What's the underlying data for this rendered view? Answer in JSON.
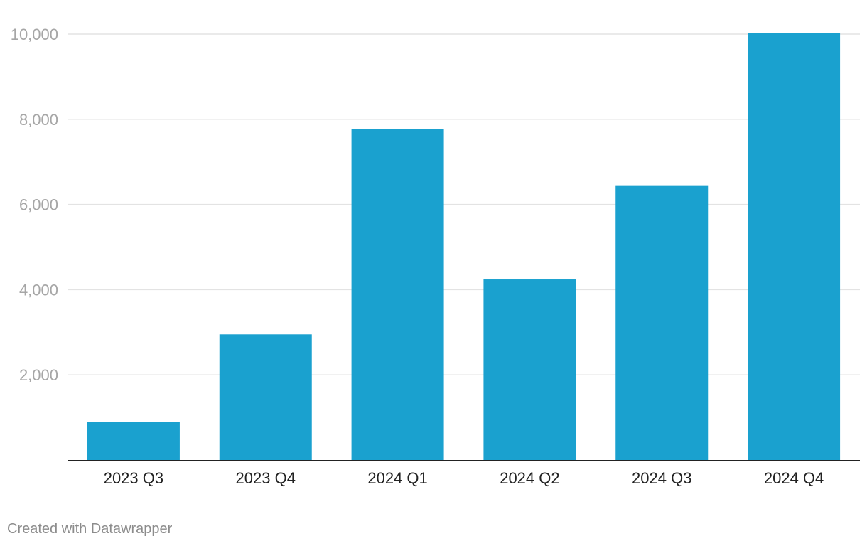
{
  "chart_data": {
    "type": "bar",
    "categories": [
      "2023 Q3",
      "2023 Q4",
      "2024 Q1",
      "2024 Q2",
      "2024 Q3",
      "2024 Q4"
    ],
    "values": [
      900,
      2950,
      7770,
      4240,
      6450,
      10020
    ],
    "yticks": [
      "2,000",
      "4,000",
      "6,000",
      "8,000",
      "10,000"
    ],
    "ytick_values": [
      2000,
      4000,
      6000,
      8000,
      10000
    ],
    "ylim": [
      0,
      10000
    ],
    "bar_color": "#1aa1cf",
    "grid": true,
    "title": "",
    "xlabel": "",
    "ylabel": ""
  },
  "footer": {
    "credit": "Created with Datawrapper"
  }
}
